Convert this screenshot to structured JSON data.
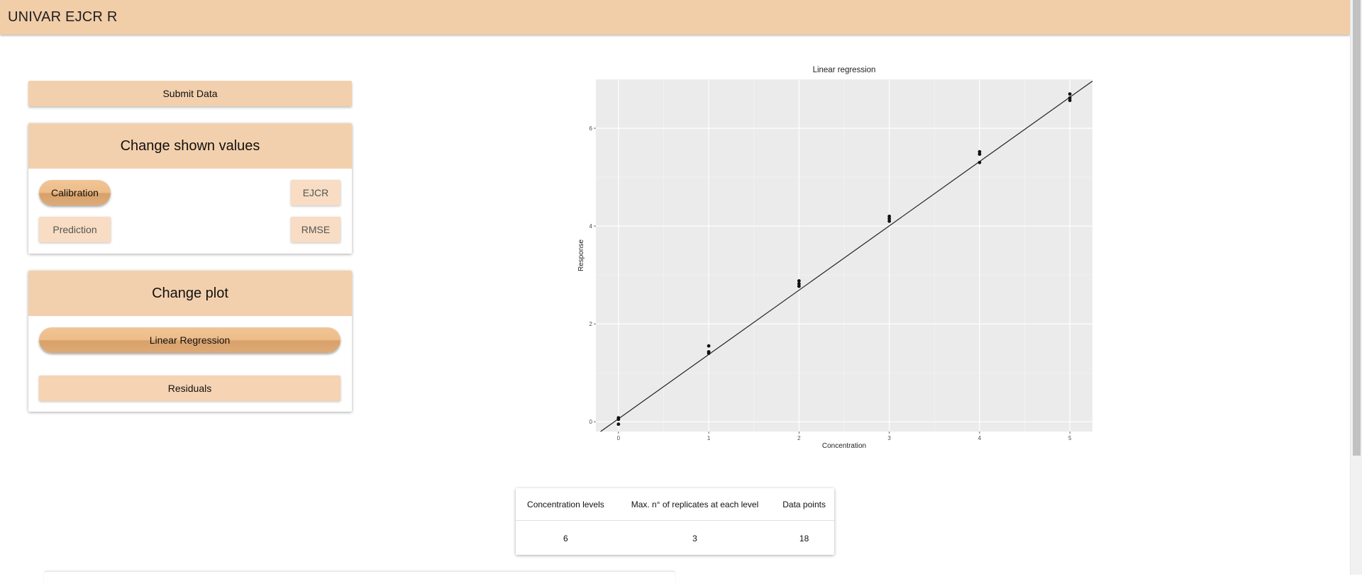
{
  "app": {
    "title": "UNIVAR EJCR R"
  },
  "sidebar": {
    "submit_label": "Submit Data",
    "values_card": {
      "title": "Change shown values",
      "options": {
        "calibration": "Calibration",
        "ejcr": "EJCR",
        "prediction": "Prediction",
        "rmse": "RMSE"
      },
      "selected": "Calibration"
    },
    "plot_card": {
      "title": "Change plot",
      "options": {
        "linear": "Linear Regression",
        "residuals": "Residuals"
      },
      "selected": "Linear Regression"
    }
  },
  "chart_data": {
    "type": "scatter",
    "title": "Linear regression",
    "xlabel": "Concentration",
    "ylabel": "Response",
    "xlim": [
      -0.25,
      5.25
    ],
    "ylim": [
      -0.2,
      7.0
    ],
    "xticks": [
      0,
      1,
      2,
      3,
      4,
      5
    ],
    "yticks": [
      0,
      2,
      4,
      6
    ],
    "grid": true,
    "series": [
      {
        "points": [
          [
            0,
            0.08
          ],
          [
            0,
            0.05
          ],
          [
            0,
            -0.05
          ],
          [
            1,
            1.55
          ],
          [
            1,
            1.43
          ],
          [
            1,
            1.4
          ],
          [
            2,
            2.88
          ],
          [
            2,
            2.82
          ],
          [
            2,
            2.77
          ],
          [
            3,
            4.2
          ],
          [
            3,
            4.15
          ],
          [
            3,
            4.1
          ],
          [
            4,
            5.52
          ],
          [
            4,
            5.47
          ],
          [
            4,
            5.3
          ],
          [
            5,
            6.7
          ],
          [
            5,
            6.62
          ],
          [
            5,
            6.57
          ]
        ]
      }
    ],
    "fit_line": {
      "intercept": 0.06,
      "slope": 1.315
    }
  },
  "summary": {
    "headers": [
      "Concentration levels",
      "Max. n° of replicates at each level",
      "Data points"
    ],
    "values": [
      "6",
      "3",
      "18"
    ]
  }
}
